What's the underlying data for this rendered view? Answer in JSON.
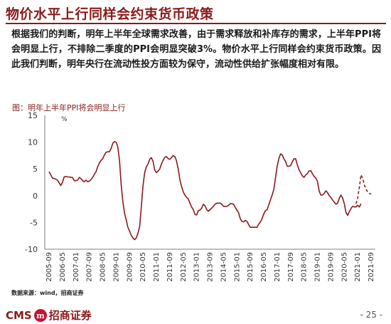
{
  "header": {
    "title": "物价水平上行同样会约束货币政策"
  },
  "body": {
    "paragraph": "根据我们的判断，明年上半年全球需求改善，由于需求释放和补库存的需求，上半年PPI将会明显上行，不排除二季度的PPI会明显突破3%。物价水平上行同样会约束货币政策。因此我们判断，明年央行在流动性投方面较为保守，流动性供给扩张幅度相对有限。"
  },
  "chart_data": {
    "type": "line",
    "caption": "图：明年上半年PPI将会明显上行",
    "unit": "%",
    "ylim": [
      -10,
      15
    ],
    "yticks": [
      -10,
      -5,
      0,
      5,
      10,
      15
    ],
    "xtick_labels": [
      "2005-09",
      "2006-05",
      "2007-01",
      "2007-09",
      "2008-05",
      "2009-01",
      "2009-09",
      "2010-05",
      "2011-01",
      "2011-09",
      "2012-05",
      "2013-01",
      "2013-09",
      "2014-05",
      "2015-01",
      "2015-09",
      "2016-05",
      "2017-01",
      "2017-09",
      "2018-05",
      "2019-01",
      "2019-09",
      "2020-05",
      "2021-01",
      "2021-09"
    ],
    "grid": false,
    "legend": "none",
    "line_color": "#8b1a1a",
    "series": [
      {
        "style": "solid",
        "start": "2005-09",
        "values": [
          4.5,
          3.9,
          3.3,
          3.2,
          3.1,
          2.9,
          2.4,
          1.9,
          2.5,
          3.5,
          3.6,
          3.5,
          3.5,
          3.4,
          3.4,
          2.8,
          2.8,
          2.9,
          3.4,
          3.2,
          2.8,
          2.6,
          2.9,
          2.6,
          2.7,
          3.0,
          3.4,
          4.0,
          4.5,
          5.4,
          6.1,
          6.6,
          6.9,
          7.6,
          8.1,
          8.2,
          8.2,
          8.8,
          9.8,
          10.1,
          10.0,
          9.1,
          6.6,
          2.0,
          -1.1,
          -3.3,
          -4.5,
          -5.9,
          -6.6,
          -7.4,
          -7.9,
          -8.2,
          -7.9,
          -7.0,
          -5.8,
          -2.1,
          1.8,
          4.3,
          5.4,
          5.9,
          6.8,
          7.1,
          6.4,
          4.8,
          4.3,
          4.6,
          5.0,
          5.9,
          6.6,
          7.2,
          7.3,
          6.9,
          6.8,
          7.1,
          7.5,
          7.3,
          6.5,
          5.0,
          3.0,
          1.7,
          0.7,
          0.1,
          -0.3,
          -0.6,
          -1.4,
          -2.1,
          -2.6,
          -3.5,
          -3.6,
          -2.8,
          -2.7,
          -2.3,
          -1.6,
          -1.9,
          -2.6,
          -2.9,
          -2.6,
          -2.3,
          -2.0,
          -1.6,
          -1.4,
          -1.4,
          -1.4,
          -1.6,
          -2.0,
          -2.0,
          -2.0,
          -1.8,
          -1.5,
          -1.5,
          -1.6,
          -2.2,
          -2.7,
          -3.2,
          -4.3,
          -4.8,
          -4.9,
          -4.6,
          -4.8,
          -5.4,
          -5.9,
          -5.9,
          -5.9,
          -5.9,
          -5.9,
          -5.3,
          -4.9,
          -4.3,
          -3.4,
          -2.8,
          -2.6,
          -1.7,
          -0.8,
          0.1,
          1.2,
          3.3,
          5.5,
          6.9,
          7.8,
          7.6,
          6.9,
          6.4,
          5.5,
          5.5,
          5.6,
          6.3,
          6.9,
          6.9,
          5.8,
          4.9,
          4.3,
          3.7,
          3.4,
          3.9,
          4.1,
          4.6,
          4.7,
          4.1,
          3.6,
          3.3,
          2.7,
          0.9,
          0.1,
          0.1,
          0.4,
          0.9,
          0.6,
          0.0,
          -0.3,
          -0.8,
          -1.2,
          -1.6,
          -1.4,
          -0.5,
          0.1,
          -0.4,
          -1.5,
          -3.1,
          -3.7,
          -3.0,
          -2.4,
          -2.0,
          -2.1,
          -2.1,
          -1.8,
          -2.1,
          -1.5
        ]
      },
      {
        "style": "dashed",
        "start": "2020-12",
        "values": [
          -1.5,
          -0.4,
          1.6,
          3.9,
          3.2,
          2.0,
          1.2,
          0.7,
          0.4,
          0.3
        ]
      }
    ]
  },
  "source": {
    "note": "数据来源：wind，招商证券"
  },
  "footer": {
    "logo_text": "CMS",
    "logo_mark": "m",
    "logo_cn": "招商证券",
    "page": "- 25 -"
  }
}
